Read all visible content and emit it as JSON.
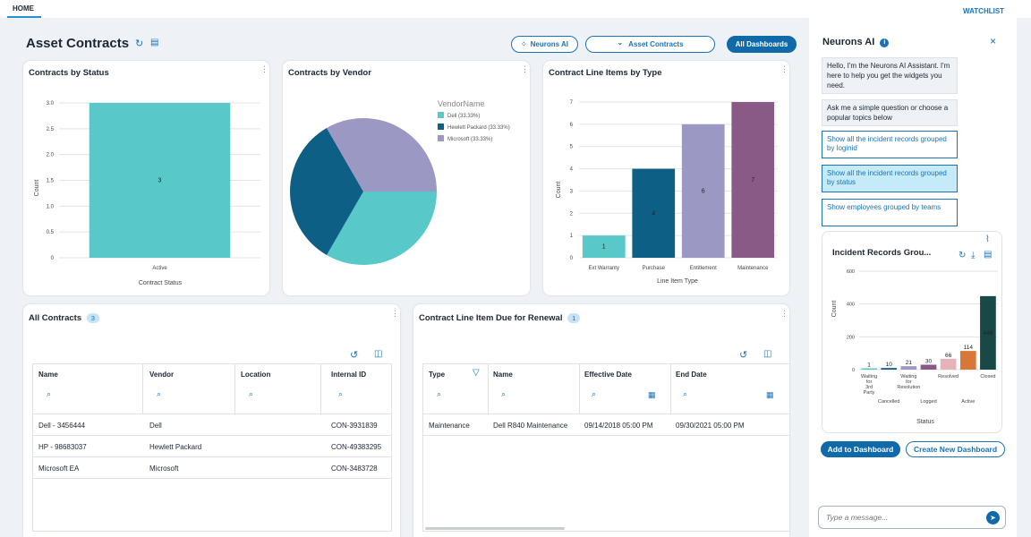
{
  "nav": {
    "home": "HOME",
    "watchlist": "WATCHLIST"
  },
  "header": {
    "title": "Asset Contracts",
    "neurons_button": "Neurons AI",
    "asset_contracts_dropdown": "Asset Contracts",
    "all_dashboards": "All Dashboards",
    "dropdown_glyph": "⌄",
    "neurons_glyph": "⁘"
  },
  "icons": {
    "refresh": "↻",
    "layout": "▤",
    "more": "⋮",
    "search": "⌕",
    "undo": "↺",
    "columns": "◫",
    "calendar": "▦",
    "filter": "▽",
    "close": "×",
    "info": "i",
    "line_chart": "⌇",
    "download": "⤓",
    "table": "▤",
    "send": "➤"
  },
  "contracts_by_status": {
    "title": "Contracts by Status",
    "chart_data": {
      "type": "bar",
      "categories": [
        "Active"
      ],
      "values": [
        3
      ],
      "color": "#58c8c8",
      "xlabel": "Contract Status",
      "ylabel": "Count",
      "ylim": [
        0,
        3
      ],
      "yticks": [
        "3.0",
        "2.5",
        "2.0",
        "1.5",
        "1.0",
        "0.5",
        "0"
      ]
    }
  },
  "contracts_by_vendor": {
    "title": "Contracts by Vendor",
    "chart_data": {
      "type": "pie",
      "legend_title": "VendorName",
      "slices": [
        {
          "label": "Dell (33.33%)",
          "value": 33.33,
          "color": "#58c8c8"
        },
        {
          "label": "Hewlett Packard (33.33%)",
          "value": 33.33,
          "color": "#0e5f85"
        },
        {
          "label": "Microsoft (33.33%)",
          "value": 33.33,
          "color": "#9b99c3"
        }
      ]
    }
  },
  "line_items_by_type": {
    "title": "Contract Line Items by Type",
    "chart_data": {
      "type": "bar",
      "categories": [
        "Ext Warranty",
        "Purchase",
        "Entitlement",
        "Maintenance"
      ],
      "values": [
        1,
        4,
        6,
        7
      ],
      "colors": [
        "#58c8c8",
        "#0e5f85",
        "#9b99c3",
        "#8a5a86"
      ],
      "xlabel": "Line Item Type",
      "ylabel": "Count",
      "ylim": [
        0,
        7
      ],
      "yticks": [
        "7",
        "6",
        "5",
        "4",
        "3",
        "2",
        "1",
        "0"
      ]
    }
  },
  "all_contracts": {
    "title": "All Contracts",
    "count": "3",
    "columns": [
      "Name",
      "Vendor",
      "Location",
      "Internal ID"
    ],
    "rows": [
      {
        "name": "Dell - 3456444",
        "vendor": "Dell",
        "location": "",
        "id": "CON-3931839"
      },
      {
        "name": "HP - 98683037",
        "vendor": "Hewlett Packard",
        "location": "",
        "id": "CON-49383295"
      },
      {
        "name": "Microsoft EA",
        "vendor": "Microsoft",
        "location": "",
        "id": "CON-3483728"
      }
    ]
  },
  "renewal": {
    "title": "Contract Line Item Due for Renewal",
    "count": "1",
    "columns": [
      "Type",
      "Name",
      "Effective Date",
      "End Date"
    ],
    "rows": [
      {
        "type": "Maintenance",
        "name": "Dell R840 Maintenance",
        "effective": "09/14/2018 05:00 PM",
        "end": "09/30/2021 05:00 PM"
      }
    ]
  },
  "neurons": {
    "title": "Neurons AI",
    "greeting": "Hello, I'm the Neurons AI Assistant. I'm here to help you get the widgets you need.",
    "prompt": "Ask me a simple question or choose a popular topics below",
    "suggestions": [
      "Show all the incident records grouped by loginid",
      "Show all the incident records grouped by status",
      "Show employees grouped by teams"
    ],
    "widget_title": "Incident Records Grou...",
    "chart_data": {
      "type": "bar",
      "categories": [
        "Waiting for 3rd Party",
        "Cancelled",
        "Waiting for Resolution",
        "Logged",
        "Resolved",
        "Active",
        "Closed"
      ],
      "values": [
        1,
        10,
        21,
        30,
        66,
        114,
        448
      ],
      "colors": [
        "#58c8c8",
        "#0e5f85",
        "#9b99c3",
        "#8a5a86",
        "#e6b3b8",
        "#d9773a",
        "#174a46"
      ],
      "xlabel": "Status",
      "ylabel": "Count",
      "ylim": [
        0,
        600
      ],
      "yticks": [
        "600",
        "400",
        "200",
        "0"
      ],
      "tick_top": [
        "Waiting\nfor\n3rd\nParty",
        "Waiting\nfor\nResolution",
        "Resolved",
        "Closed"
      ],
      "tick_bottom": [
        "Cancelled",
        "Logged",
        "Active"
      ]
    },
    "add_to_dashboard": "Add to Dashboard",
    "create_new_dashboard": "Create New Dashboard",
    "input_placeholder": "Type a message..."
  }
}
